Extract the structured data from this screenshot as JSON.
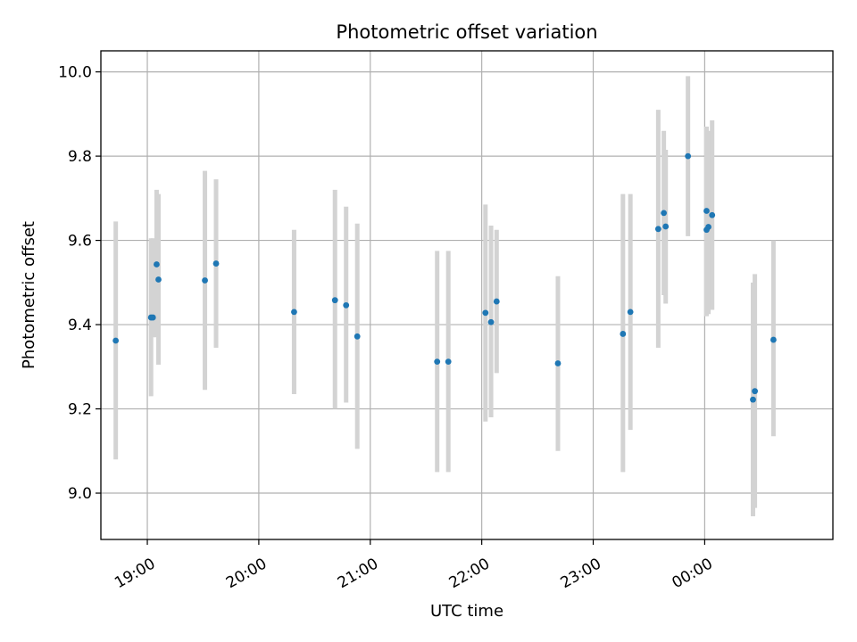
{
  "chart_data": {
    "type": "scatter",
    "title": "Photometric offset variation",
    "xlabel": "UTC time",
    "ylabel": "Photometric offset",
    "x_axis": {
      "kind": "time",
      "range": [
        "18:35",
        "01:09"
      ],
      "ticks": [
        {
          "value": "19:00",
          "label": "19:00"
        },
        {
          "value": "20:00",
          "label": "20:00"
        },
        {
          "value": "21:00",
          "label": "21:00"
        },
        {
          "value": "22:00",
          "label": "22:00"
        },
        {
          "value": "23:00",
          "label": "23:00"
        },
        {
          "value": "00:00",
          "label": "00:00"
        }
      ]
    },
    "ylim": [
      8.89,
      10.05
    ],
    "y_ticks": [
      {
        "value": 9.0,
        "label": "9.0"
      },
      {
        "value": 9.2,
        "label": "9.2"
      },
      {
        "value": 9.4,
        "label": "9.4"
      },
      {
        "value": 9.6,
        "label": "9.6"
      },
      {
        "value": 9.8,
        "label": "9.8"
      },
      {
        "value": 10.0,
        "label": "10.0"
      }
    ],
    "grid": true,
    "colors": {
      "points": "#1f77b4",
      "errorbars": "#d3d3d3",
      "grid": "#b0b0b0"
    },
    "points": [
      {
        "x": "18:43",
        "y": 9.362,
        "ylow": 9.08,
        "yhigh": 9.645
      },
      {
        "x": "19:02",
        "y": 9.417,
        "ylow": 9.23,
        "yhigh": 9.605
      },
      {
        "x": "19:03",
        "y": 9.417,
        "ylow": 9.37,
        "yhigh": 9.605
      },
      {
        "x": "19:05",
        "y": 9.543,
        "ylow": 9.37,
        "yhigh": 9.72
      },
      {
        "x": "19:06",
        "y": 9.507,
        "ylow": 9.305,
        "yhigh": 9.71
      },
      {
        "x": "19:31",
        "y": 9.505,
        "ylow": 9.245,
        "yhigh": 9.765
      },
      {
        "x": "19:37",
        "y": 9.545,
        "ylow": 9.345,
        "yhigh": 9.745
      },
      {
        "x": "20:19",
        "y": 9.43,
        "ylow": 9.235,
        "yhigh": 9.625
      },
      {
        "x": "20:41",
        "y": 9.458,
        "ylow": 9.2,
        "yhigh": 9.72
      },
      {
        "x": "20:47",
        "y": 9.446,
        "ylow": 9.215,
        "yhigh": 9.68
      },
      {
        "x": "20:53",
        "y": 9.372,
        "ylow": 9.105,
        "yhigh": 9.64
      },
      {
        "x": "21:36",
        "y": 9.312,
        "ylow": 9.05,
        "yhigh": 9.575
      },
      {
        "x": "21:42",
        "y": 9.312,
        "ylow": 9.05,
        "yhigh": 9.575
      },
      {
        "x": "22:02",
        "y": 9.428,
        "ylow": 9.17,
        "yhigh": 9.685
      },
      {
        "x": "22:05",
        "y": 9.406,
        "ylow": 9.18,
        "yhigh": 9.635
      },
      {
        "x": "22:08",
        "y": 9.455,
        "ylow": 9.285,
        "yhigh": 9.625
      },
      {
        "x": "22:41",
        "y": 9.308,
        "ylow": 9.1,
        "yhigh": 9.515
      },
      {
        "x": "23:16",
        "y": 9.378,
        "ylow": 9.05,
        "yhigh": 9.71
      },
      {
        "x": "23:20",
        "y": 9.43,
        "ylow": 9.15,
        "yhigh": 9.71
      },
      {
        "x": "23:35",
        "y": 9.627,
        "ylow": 9.345,
        "yhigh": 9.91
      },
      {
        "x": "23:38",
        "y": 9.665,
        "ylow": 9.47,
        "yhigh": 9.86
      },
      {
        "x": "23:39",
        "y": 9.633,
        "ylow": 9.45,
        "yhigh": 9.815
      },
      {
        "x": "23:51",
        "y": 9.8,
        "ylow": 9.61,
        "yhigh": 9.99
      },
      {
        "x": "00:01",
        "y": 9.67,
        "ylow": 9.475,
        "yhigh": 9.87
      },
      {
        "x": "00:01",
        "y": 9.625,
        "ylow": 9.42,
        "yhigh": 9.845
      },
      {
        "x": "00:02",
        "y": 9.632,
        "ylow": 9.425,
        "yhigh": 9.86
      },
      {
        "x": "00:04",
        "y": 9.66,
        "ylow": 9.435,
        "yhigh": 9.885
      },
      {
        "x": "00:26",
        "y": 9.222,
        "ylow": 8.945,
        "yhigh": 9.5
      },
      {
        "x": "00:27",
        "y": 9.242,
        "ylow": 8.965,
        "yhigh": 9.52
      },
      {
        "x": "00:37",
        "y": 9.364,
        "ylow": 9.135,
        "yhigh": 9.6
      }
    ]
  }
}
